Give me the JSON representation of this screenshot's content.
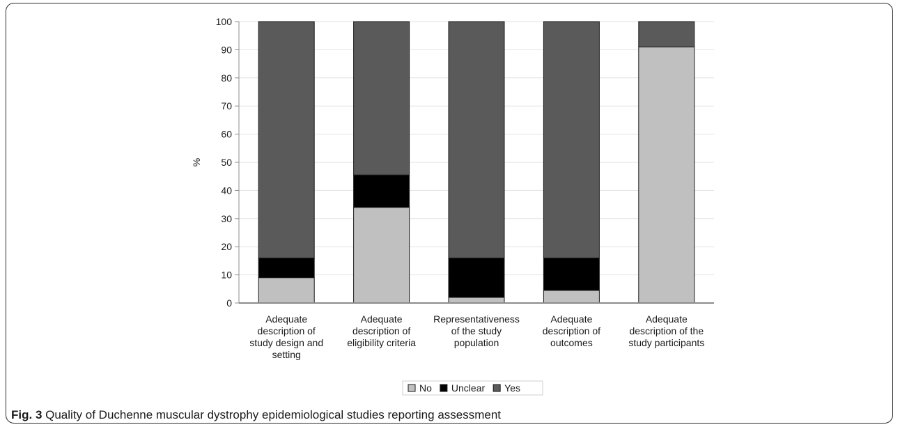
{
  "chart_data": {
    "type": "bar",
    "stacked": true,
    "ylabel": "%",
    "xlabel": "",
    "ylim": [
      0,
      100
    ],
    "yticks": [
      0,
      10,
      20,
      30,
      40,
      50,
      60,
      70,
      80,
      90,
      100
    ],
    "grid": true,
    "legend_position": "bottom",
    "categories": [
      [
        "Adequate",
        "description of",
        "study design and",
        "setting"
      ],
      [
        "Adequate",
        "description of",
        "eligibility criteria"
      ],
      [
        "Representativeness",
        "of the study",
        "population"
      ],
      [
        "Adequate",
        "description of",
        "outcomes"
      ],
      [
        "Adequate",
        "description of the",
        "study participants"
      ]
    ],
    "series": [
      {
        "name": "No",
        "color": "#c0c0c0",
        "values": [
          9,
          34,
          2,
          4.5,
          91
        ]
      },
      {
        "name": "Unclear",
        "color": "#000000",
        "values": [
          7,
          11.5,
          14,
          11.5,
          0
        ]
      },
      {
        "name": "Yes",
        "color": "#5a5a5a",
        "values": [
          84,
          54.5,
          84,
          84,
          9
        ]
      }
    ]
  },
  "caption": {
    "fig_label": "Fig. 3",
    "text": " Quality of Duchenne muscular dystrophy epidemiological studies reporting assessment"
  }
}
